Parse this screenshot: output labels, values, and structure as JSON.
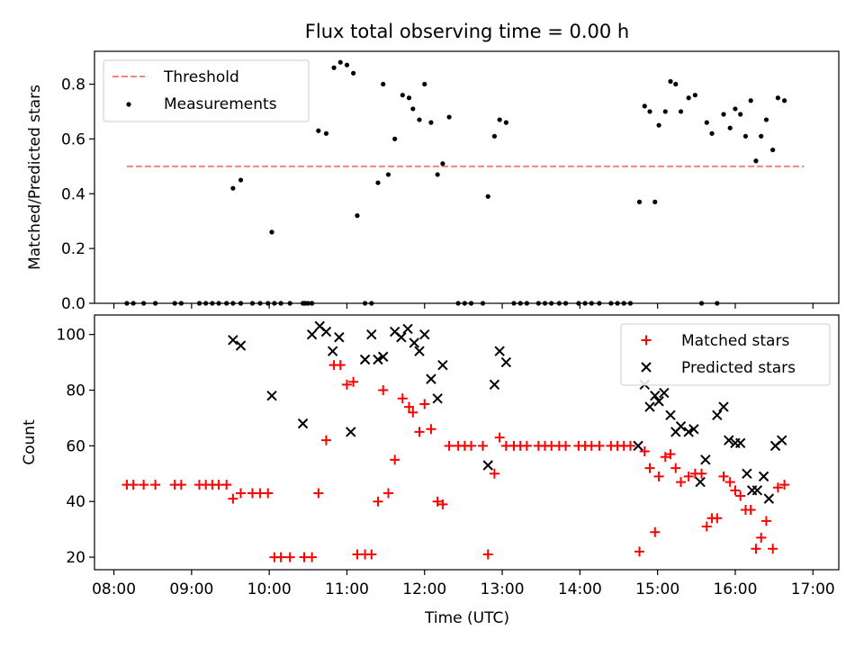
{
  "title": "Flux total observing time = 0.00 h",
  "xlabel": "Time (UTC)",
  "x_ticks": [
    "08:00",
    "09:00",
    "10:00",
    "11:00",
    "12:00",
    "13:00",
    "14:00",
    "15:00",
    "16:00",
    "17:00"
  ],
  "chart_data": [
    {
      "type": "scatter",
      "panel": "top",
      "ylabel": "Matched/Predicted stars",
      "xlim": [
        "07:45",
        "17:20"
      ],
      "ylim": [
        0,
        0.92
      ],
      "y_ticks": [
        "0.0",
        "0.2",
        "0.4",
        "0.6",
        "0.8"
      ],
      "legend_position": "top-left",
      "threshold": {
        "name": "Threshold",
        "y": 0.5,
        "x_range": [
          "08:10",
          "16:53"
        ],
        "color": "#ff7f7f"
      },
      "series": [
        {
          "name": "Measurements",
          "marker": "dot",
          "color": "#000000",
          "points": [
            [
              "08:10",
              0
            ],
            [
              "08:15",
              0
            ],
            [
              "08:23",
              0
            ],
            [
              "08:32",
              0
            ],
            [
              "08:47",
              0
            ],
            [
              "08:52",
              0
            ],
            [
              "09:06",
              0
            ],
            [
              "09:11",
              0
            ],
            [
              "09:16",
              0
            ],
            [
              "09:21",
              0
            ],
            [
              "09:27",
              0
            ],
            [
              "09:32",
              0
            ],
            [
              "09:38",
              0
            ],
            [
              "09:47",
              0
            ],
            [
              "09:53",
              0
            ],
            [
              "09:59",
              0
            ],
            [
              "10:04",
              0
            ],
            [
              "10:09",
              0
            ],
            [
              "10:16",
              0
            ],
            [
              "10:27",
              0
            ],
            [
              "10:33",
              0
            ],
            [
              "09:32",
              0.42
            ],
            [
              "09:38",
              0.45
            ],
            [
              "10:02",
              0.26
            ],
            [
              "10:26",
              0.0
            ],
            [
              "10:28",
              0.0
            ],
            [
              "10:30",
              0.0
            ],
            [
              "10:33",
              0.0
            ],
            [
              "10:38",
              0.63
            ],
            [
              "10:44",
              0.62
            ],
            [
              "10:50",
              0.86
            ],
            [
              "10:55",
              0.88
            ],
            [
              "11:00",
              0.87
            ],
            [
              "11:05",
              0.84
            ],
            [
              "11:08",
              0.32
            ],
            [
              "11:14",
              0
            ],
            [
              "11:19",
              0
            ],
            [
              "11:24",
              0.44
            ],
            [
              "11:28",
              0.8
            ],
            [
              "11:32",
              0.47
            ],
            [
              "11:37",
              0.6
            ],
            [
              "11:43",
              0.76
            ],
            [
              "11:48",
              0.75
            ],
            [
              "11:51",
              0.71
            ],
            [
              "11:56",
              0.67
            ],
            [
              "12:00",
              0.8
            ],
            [
              "12:05",
              0.66
            ],
            [
              "12:10",
              0.47
            ],
            [
              "12:14",
              0.51
            ],
            [
              "12:19",
              0.68
            ],
            [
              "12:26",
              0
            ],
            [
              "12:31",
              0
            ],
            [
              "12:36",
              0
            ],
            [
              "12:45",
              0
            ],
            [
              "12:49",
              0.39
            ],
            [
              "12:54",
              0.61
            ],
            [
              "12:58",
              0.67
            ],
            [
              "13:03",
              0.66
            ],
            [
              "13:09",
              0
            ],
            [
              "13:14",
              0
            ],
            [
              "13:19",
              0
            ],
            [
              "13:28",
              0
            ],
            [
              "13:33",
              0
            ],
            [
              "13:38",
              0
            ],
            [
              "13:44",
              0
            ],
            [
              "13:49",
              0
            ],
            [
              "13:59",
              0
            ],
            [
              "14:04",
              0
            ],
            [
              "14:09",
              0
            ],
            [
              "14:15",
              0
            ],
            [
              "14:24",
              0
            ],
            [
              "14:29",
              0
            ],
            [
              "14:34",
              0
            ],
            [
              "14:39",
              0
            ],
            [
              "14:46",
              0.37
            ],
            [
              "14:50",
              0.72
            ],
            [
              "14:54",
              0.7
            ],
            [
              "14:58",
              0.37
            ],
            [
              "15:01",
              0.65
            ],
            [
              "15:06",
              0.7
            ],
            [
              "15:10",
              0.81
            ],
            [
              "15:14",
              0.8
            ],
            [
              "15:18",
              0.7
            ],
            [
              "15:24",
              0.75
            ],
            [
              "15:29",
              0.76
            ],
            [
              "15:34",
              0
            ],
            [
              "15:38",
              0.66
            ],
            [
              "15:42",
              0.62
            ],
            [
              "15:46",
              0
            ],
            [
              "15:51",
              0.69
            ],
            [
              "15:56",
              0.64
            ],
            [
              "16:00",
              0.71
            ],
            [
              "16:04",
              0.69
            ],
            [
              "16:08",
              0.61
            ],
            [
              "16:12",
              0.74
            ],
            [
              "16:16",
              0.52
            ],
            [
              "16:20",
              0.61
            ],
            [
              "16:24",
              0.67
            ],
            [
              "16:29",
              0.56
            ],
            [
              "16:33",
              0.75
            ],
            [
              "16:38",
              0.74
            ]
          ]
        }
      ]
    },
    {
      "type": "scatter",
      "panel": "bottom",
      "ylabel": "Count",
      "xlim": [
        "07:45",
        "17:20"
      ],
      "ylim": [
        15.5,
        107
      ],
      "y_ticks": [
        "20",
        "40",
        "60",
        "80",
        "100"
      ],
      "legend_position": "top-right",
      "series": [
        {
          "name": "Matched stars",
          "marker": "plus",
          "color": "#ff0000",
          "points": [
            [
              "08:10",
              46
            ],
            [
              "08:15",
              46
            ],
            [
              "08:23",
              46
            ],
            [
              "08:32",
              46
            ],
            [
              "08:47",
              46
            ],
            [
              "08:52",
              46
            ],
            [
              "09:06",
              46
            ],
            [
              "09:11",
              46
            ],
            [
              "09:16",
              46
            ],
            [
              "09:21",
              46
            ],
            [
              "09:27",
              46
            ],
            [
              "09:32",
              41
            ],
            [
              "09:38",
              43
            ],
            [
              "09:47",
              43
            ],
            [
              "09:53",
              43
            ],
            [
              "09:59",
              43
            ],
            [
              "10:04",
              20
            ],
            [
              "10:09",
              20
            ],
            [
              "10:16",
              20
            ],
            [
              "10:27",
              20
            ],
            [
              "10:33",
              20
            ],
            [
              "10:38",
              43
            ],
            [
              "10:44",
              62
            ],
            [
              "10:50",
              89
            ],
            [
              "10:55",
              89
            ],
            [
              "11:00",
              82
            ],
            [
              "11:05",
              83
            ],
            [
              "11:08",
              21
            ],
            [
              "11:14",
              21
            ],
            [
              "11:19",
              21
            ],
            [
              "11:24",
              40
            ],
            [
              "11:28",
              80
            ],
            [
              "11:32",
              43
            ],
            [
              "11:37",
              55
            ],
            [
              "11:43",
              77
            ],
            [
              "11:48",
              74
            ],
            [
              "11:51",
              72
            ],
            [
              "11:56",
              65
            ],
            [
              "12:00",
              75
            ],
            [
              "12:05",
              66
            ],
            [
              "12:10",
              40
            ],
            [
              "12:14",
              39
            ],
            [
              "12:19",
              60
            ],
            [
              "12:26",
              60
            ],
            [
              "12:31",
              60
            ],
            [
              "12:36",
              60
            ],
            [
              "12:45",
              60
            ],
            [
              "12:49",
              21
            ],
            [
              "12:54",
              50
            ],
            [
              "12:58",
              63
            ],
            [
              "13:03",
              60
            ],
            [
              "13:09",
              60
            ],
            [
              "13:14",
              60
            ],
            [
              "13:19",
              60
            ],
            [
              "13:28",
              60
            ],
            [
              "13:33",
              60
            ],
            [
              "13:38",
              60
            ],
            [
              "13:44",
              60
            ],
            [
              "13:49",
              60
            ],
            [
              "13:59",
              60
            ],
            [
              "14:04",
              60
            ],
            [
              "14:09",
              60
            ],
            [
              "14:15",
              60
            ],
            [
              "14:24",
              60
            ],
            [
              "14:29",
              60
            ],
            [
              "14:34",
              60
            ],
            [
              "14:39",
              60
            ],
            [
              "14:46",
              22
            ],
            [
              "14:50",
              58
            ],
            [
              "14:54",
              52
            ],
            [
              "14:58",
              29
            ],
            [
              "15:01",
              49
            ],
            [
              "15:06",
              56
            ],
            [
              "15:10",
              57
            ],
            [
              "15:14",
              52
            ],
            [
              "15:18",
              47
            ],
            [
              "15:24",
              49
            ],
            [
              "15:29",
              50
            ],
            [
              "15:34",
              50
            ],
            [
              "15:38",
              31
            ],
            [
              "15:42",
              34
            ],
            [
              "15:46",
              34
            ],
            [
              "15:51",
              49
            ],
            [
              "15:56",
              47
            ],
            [
              "16:00",
              44
            ],
            [
              "16:04",
              42
            ],
            [
              "16:08",
              37
            ],
            [
              "16:12",
              37
            ],
            [
              "16:16",
              23
            ],
            [
              "16:20",
              27
            ],
            [
              "16:24",
              33
            ],
            [
              "16:29",
              23
            ],
            [
              "16:33",
              45
            ],
            [
              "16:38",
              46
            ]
          ]
        },
        {
          "name": "Predicted stars",
          "marker": "x",
          "color": "#000000",
          "points": [
            [
              "09:32",
              98
            ],
            [
              "09:38",
              96
            ],
            [
              "10:02",
              78
            ],
            [
              "10:26",
              68
            ],
            [
              "10:33",
              100
            ],
            [
              "10:39",
              103
            ],
            [
              "10:44",
              101
            ],
            [
              "10:49",
              94
            ],
            [
              "10:54",
              99
            ],
            [
              "11:03",
              65
            ],
            [
              "11:14",
              91
            ],
            [
              "11:19",
              100
            ],
            [
              "11:24",
              91
            ],
            [
              "11:28",
              92
            ],
            [
              "11:37",
              101
            ],
            [
              "11:42",
              99
            ],
            [
              "11:47",
              102
            ],
            [
              "11:52",
              97
            ],
            [
              "11:56",
              94
            ],
            [
              "12:00",
              100
            ],
            [
              "12:05",
              84
            ],
            [
              "12:10",
              77
            ],
            [
              "12:14",
              89
            ],
            [
              "12:49",
              53
            ],
            [
              "12:54",
              82
            ],
            [
              "12:58",
              94
            ],
            [
              "13:03",
              90
            ],
            [
              "14:45",
              60
            ],
            [
              "14:50",
              82
            ],
            [
              "14:54",
              74
            ],
            [
              "14:58",
              78
            ],
            [
              "15:01",
              76
            ],
            [
              "15:05",
              79
            ],
            [
              "15:10",
              71
            ],
            [
              "15:14",
              65
            ],
            [
              "15:18",
              67
            ],
            [
              "15:24",
              65
            ],
            [
              "15:28",
              66
            ],
            [
              "15:33",
              47
            ],
            [
              "15:37",
              55
            ],
            [
              "15:46",
              71
            ],
            [
              "15:51",
              74
            ],
            [
              "15:55",
              62
            ],
            [
              "16:00",
              61
            ],
            [
              "16:04",
              61
            ],
            [
              "16:09",
              50
            ],
            [
              "16:13",
              44
            ],
            [
              "16:17",
              44
            ],
            [
              "16:22",
              49
            ],
            [
              "16:26",
              41
            ],
            [
              "16:31",
              60
            ],
            [
              "16:36",
              62
            ]
          ]
        }
      ]
    }
  ]
}
